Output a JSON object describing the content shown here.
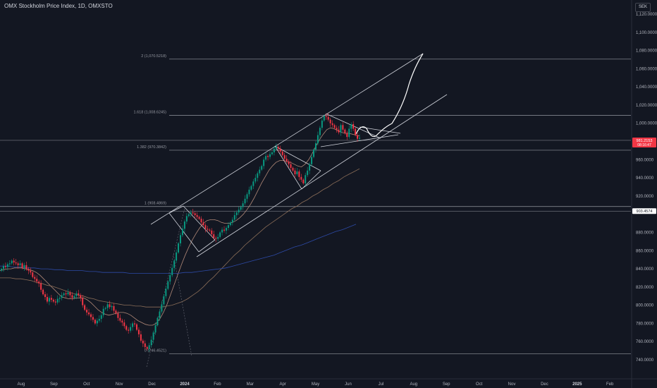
{
  "header": {
    "title": "OMX Stockholm Price Index, 1D, OMXSTO",
    "currency": "SEK"
  },
  "chart_data": {
    "type": "candlestick",
    "price_axis": {
      "range": [
        733,
        1123
      ],
      "ticks": [
        1120,
        1100,
        1080,
        1060,
        1040,
        1020,
        1000,
        960,
        940,
        920,
        880,
        860,
        840,
        820,
        800,
        780,
        760,
        740
      ],
      "tick_labels": [
        "1,120.0000",
        "1,100.0000",
        "1,080.0000",
        "1,060.0000",
        "1,040.0000",
        "1,020.0000",
        "1,000.0000",
        "960.0000",
        "940.0000",
        "920.0000",
        "880.0000",
        "860.0000",
        "840.0000",
        "820.0000",
        "800.0000",
        "780.0000",
        "760.0000",
        "740.0000"
      ]
    },
    "time_axis": {
      "labels": [
        "Aug",
        "Sep",
        "Oct",
        "Nov",
        "Dec",
        "2024",
        "Feb",
        "Mar",
        "Apr",
        "May",
        "Jun",
        "Jul",
        "Aug",
        "Sep",
        "Oct",
        "Nov",
        "Dec",
        "2025",
        "Feb"
      ],
      "bold": [
        "2024",
        "2025"
      ]
    },
    "fibonacci_levels": [
      {
        "label": "2 (1,070.5218)",
        "value": 1070.5218
      },
      {
        "label": "1.618 (1,008.6245)",
        "value": 1008.6245
      },
      {
        "label": "1.382 (970.3842)",
        "value": 970.3842
      },
      {
        "label": "1 (908.4869)",
        "value": 908.4869
      },
      {
        "label": "0 (746.4521)",
        "value": 746.4521
      }
    ],
    "price_tags": [
      {
        "label": "981.2153",
        "sub": "08:16:47",
        "value": 981.2153,
        "color": "#f23645"
      },
      {
        "label": "903.4574",
        "value": 903.4574,
        "color": "#ffffff"
      }
    ],
    "closes": [
      840,
      843,
      842,
      845,
      846,
      849,
      847,
      846,
      844,
      846,
      841,
      844,
      840,
      838,
      836,
      831,
      829,
      826,
      824,
      817,
      812,
      809,
      804,
      808,
      806,
      804,
      803,
      807,
      808,
      811,
      813,
      812,
      814,
      811,
      808,
      810,
      813,
      811,
      808,
      800,
      795,
      792,
      790,
      787,
      784,
      780,
      783,
      785,
      789,
      796,
      797,
      801,
      798,
      799,
      794,
      791,
      786,
      783,
      781,
      777,
      773,
      772,
      776,
      780,
      779,
      773,
      768,
      761,
      758,
      754,
      752,
      756,
      762,
      770,
      778,
      786,
      793,
      801,
      810,
      818,
      826,
      833,
      841,
      849,
      858,
      868,
      877,
      884,
      892,
      898,
      900,
      902,
      901,
      899,
      897,
      895,
      891,
      888,
      884,
      883,
      882,
      878,
      874,
      873,
      875,
      880,
      883,
      882,
      885,
      888,
      891,
      894,
      899,
      902,
      905,
      908,
      912,
      917,
      922,
      927,
      931,
      936,
      940,
      945,
      949,
      953,
      960,
      964,
      963,
      966,
      968,
      972,
      974,
      972,
      969,
      965,
      961,
      958,
      955,
      951,
      948,
      944,
      947,
      941,
      938,
      934,
      943,
      948,
      955,
      963,
      971,
      978,
      987,
      995,
      1003,
      1008,
      1007,
      1004,
      1000,
      998,
      995,
      993,
      990,
      998,
      993,
      989,
      985,
      994,
      999,
      994,
      987,
      983,
      984
    ],
    "moving_averages": [
      {
        "name": "MA-short",
        "color": "#b18978",
        "values": [
          838,
          839,
          840,
          840,
          841,
          841,
          841,
          840,
          839,
          838,
          836,
          833,
          829,
          825,
          821,
          817,
          813,
          809,
          808,
          807,
          807,
          808,
          808,
          808,
          806,
          803,
          799,
          795,
          792,
          790,
          789,
          790,
          791,
          792,
          792,
          791,
          789,
          786,
          783,
          781,
          779,
          778,
          778,
          780,
          785,
          792,
          801,
          812,
          823,
          834,
          845,
          855,
          864,
          872,
          879,
          885,
          890,
          893,
          894,
          894,
          893,
          891,
          890,
          890,
          891,
          893,
          896,
          900,
          905,
          911,
          918,
          926,
          934,
          941,
          948,
          953,
          957,
          959,
          959,
          958,
          957,
          955,
          953,
          952,
          955,
          960,
          967,
          975,
          982,
          988,
          993,
          995,
          994,
          992,
          990,
          989,
          989,
          988,
          987,
          986
        ]
      },
      {
        "name": "MA-long",
        "color": "#8a6d58",
        "values": [
          830,
          830,
          830,
          829,
          829,
          828,
          827,
          825,
          824,
          822,
          821,
          819,
          817,
          815,
          813,
          811,
          810,
          808,
          807,
          805,
          804,
          803,
          802,
          801,
          800,
          800,
          799,
          799,
          798,
          798,
          798,
          798,
          799,
          800,
          802,
          804,
          807,
          811,
          815,
          820,
          826,
          831,
          837,
          843,
          849,
          855,
          860,
          866,
          871,
          876,
          881,
          886,
          890,
          894,
          898,
          902,
          906,
          909,
          913,
          916,
          920,
          923,
          927,
          930,
          934,
          937,
          941,
          944,
          947,
          950
        ]
      },
      {
        "name": "MA-200",
        "color": "#2d4aa6",
        "values": [
          843,
          843,
          842,
          842,
          841,
          841,
          840,
          840,
          839,
          839,
          838,
          838,
          838,
          837,
          837,
          836,
          836,
          836,
          836,
          835,
          835,
          835,
          835,
          835,
          835,
          835,
          835,
          836,
          836,
          837,
          838,
          839,
          840,
          841,
          843,
          845,
          847,
          849,
          851,
          853,
          855,
          858,
          861,
          864,
          866,
          869,
          872,
          875,
          878,
          881,
          883,
          886,
          889
        ]
      }
    ]
  }
}
